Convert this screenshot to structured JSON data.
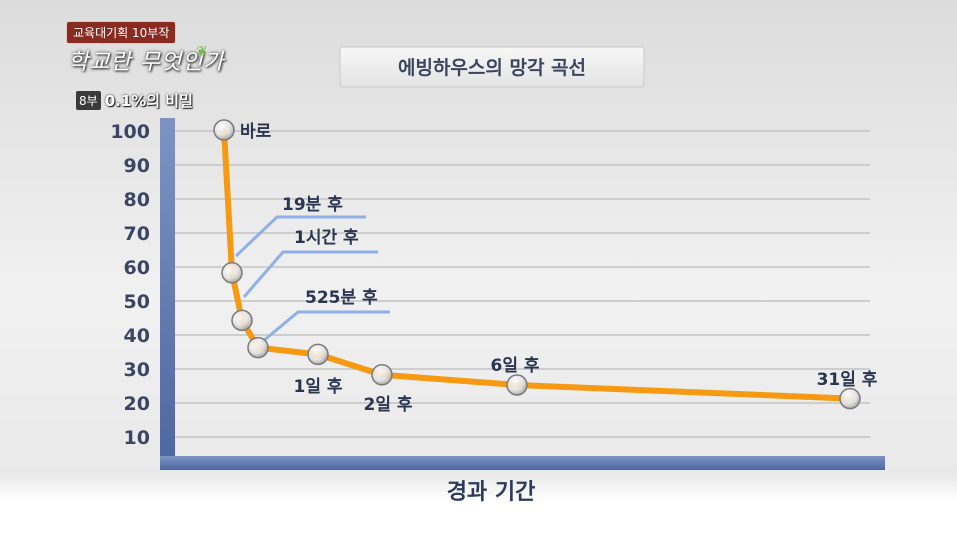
{
  "broadcast": {
    "badge": "교육대기획 10부작",
    "logo": "학교란 무엇인가",
    "leaf_icon": "leaf-icon",
    "episode_num": "8부",
    "episode_subtitle": "0.1%의 비밀"
  },
  "chart_data": {
    "type": "line",
    "title": "에빙하우스의 망각 곡선",
    "xlabel": "경과 기간",
    "ylabel": "",
    "ylim": [
      0,
      100
    ],
    "yticks": [
      10,
      20,
      30,
      40,
      50,
      60,
      70,
      80,
      90,
      100
    ],
    "grid": true,
    "series": [
      {
        "color": "#f59a12",
        "points": [
          {
            "label": "바로",
            "y": 100
          },
          {
            "label": "19분 후",
            "y": 58
          },
          {
            "label": "1시간 후",
            "y": 44
          },
          {
            "label": "525분 후",
            "y": 36
          },
          {
            "label": "1일 후",
            "y": 34
          },
          {
            "label": "2일 후",
            "y": 28
          },
          {
            "label": "6일 후",
            "y": 25
          },
          {
            "label": "31일 후",
            "y": 21
          }
        ]
      }
    ]
  }
}
